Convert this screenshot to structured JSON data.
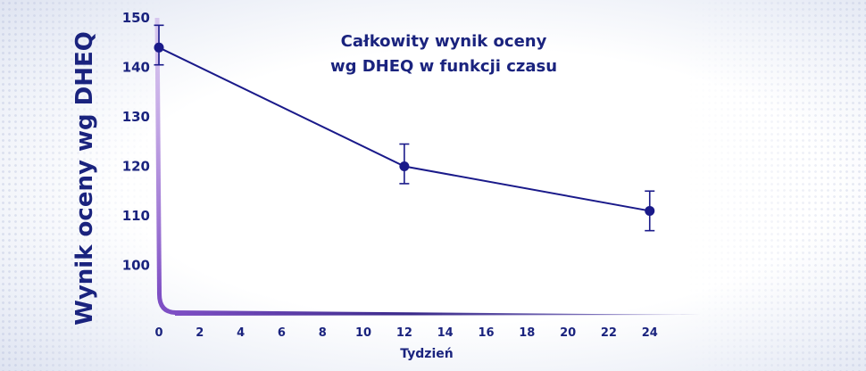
{
  "chart_data": {
    "type": "line",
    "title_lines": [
      "Całkowity wynik oceny",
      "wg DHEQ w funkcji czasu"
    ],
    "xlabel": "Tydzień",
    "ylabel": "Wynik oceny wg DHEQ",
    "x_ticks": [
      "0",
      "2",
      "4",
      "6",
      "8",
      "10",
      "12",
      "14",
      "16",
      "18",
      "20",
      "22",
      "24"
    ],
    "y_ticks": [
      "100",
      "110",
      "120",
      "130",
      "140",
      "150"
    ],
    "xlim": [
      0,
      26.5
    ],
    "ylim": [
      90,
      150
    ],
    "series": [
      {
        "x": [
          0,
          12,
          24
        ],
        "y": [
          144,
          120,
          111
        ],
        "error_low": [
          140.5,
          116.5,
          107
        ],
        "error_high": [
          148.5,
          124.5,
          115
        ]
      }
    ],
    "grid": false,
    "colors": {
      "line": "#1a1a8a",
      "axis_accent": "#7e4fc4",
      "text": "#1a237e"
    }
  }
}
